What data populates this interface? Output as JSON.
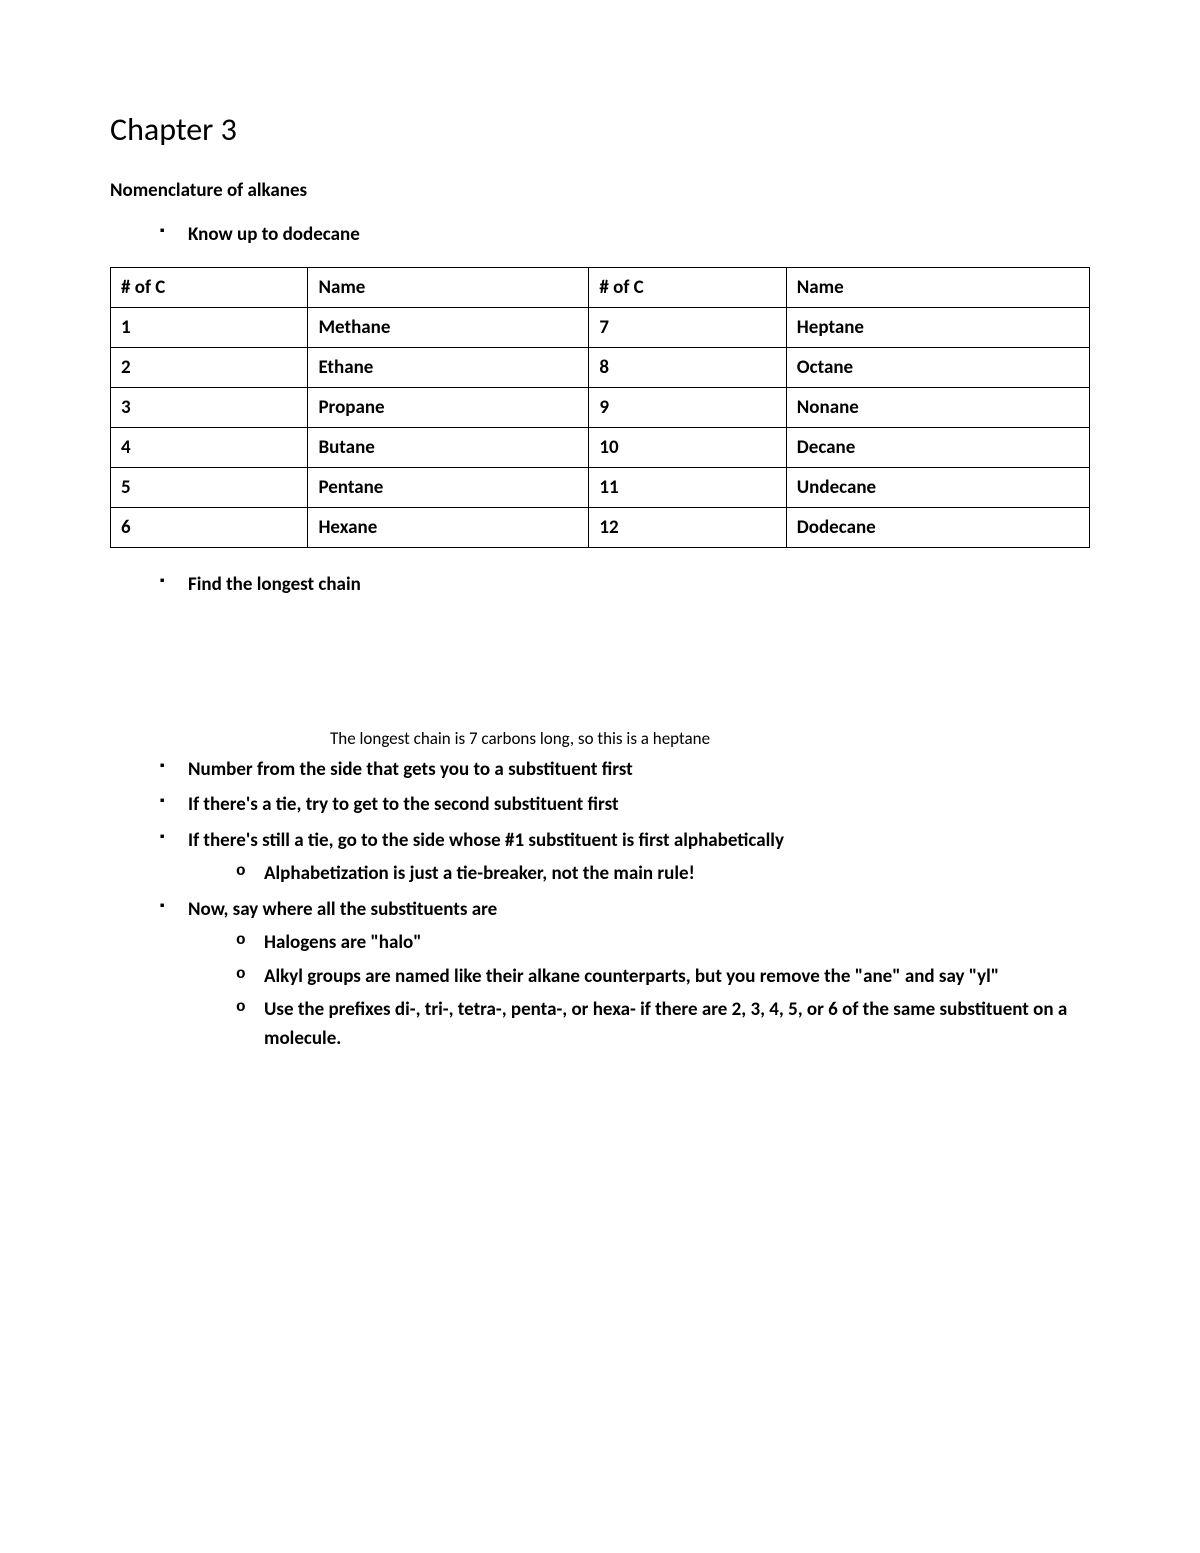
{
  "title": "Chapter 3",
  "subtitle": "Nomenclature of alkanes",
  "bullet_know": "Know up to dodecane",
  "table": {
    "columns": [
      "# of C",
      "Name",
      "# of C",
      "Name"
    ],
    "rows": [
      [
        "1",
        "Methane",
        "7",
        "Heptane"
      ],
      [
        "2",
        "Ethane",
        "8",
        "Octane"
      ],
      [
        "3",
        "Propane",
        "9",
        "Nonane"
      ],
      [
        "4",
        "Butane",
        "10",
        "Decane"
      ],
      [
        "5",
        "Pentane",
        "11",
        "Undecane"
      ],
      [
        "6",
        "Hexane",
        "12",
        "Dodecane"
      ]
    ]
  },
  "bullet_find": "Find the longest chain",
  "caption": "The longest chain is 7 carbons long, so this is a heptane",
  "bullets_after": [
    "Number from the side that gets you to a substituent first",
    "If there's a tie, try to get to the second substituent first",
    "If there's still a tie, go to the side whose #1 substituent is first alphabetically"
  ],
  "sub_alpha": "Alphabetization is just a tie-breaker, not the main rule!",
  "bullet_now": "Now, say where all the substituents are",
  "subs_now": [
    "Halogens are \"halo\"",
    "Alkyl groups are named like their alkane counterparts, but you remove the \"ane\" and say \"yl\"",
    "Use the prefixes di-, tri-, tetra-, penta-, or hexa- if there are 2, 3, 4, 5, or 6 of the same substituent on a molecule."
  ]
}
